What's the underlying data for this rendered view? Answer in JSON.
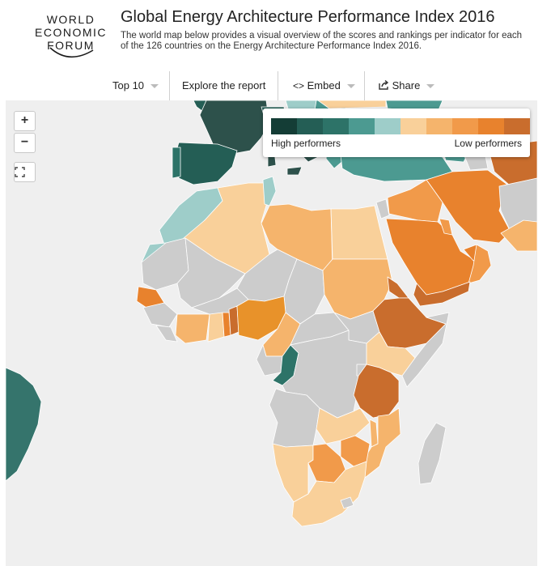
{
  "header": {
    "logo_lines": [
      "WORLD",
      "ECONOMIC",
      "FORUM"
    ],
    "title": "Global Energy Architecture Performance Index 2016",
    "subtitle": "The world map below provides a visual overview of the scores and rankings per indicator for each of the 126 countries on the Energy Architecture Performance Index 2016."
  },
  "toolbar": {
    "top_label": "Top 10",
    "explore_label": "Explore the report",
    "embed_label": "Embed",
    "share_label": "Share"
  },
  "zoom": {
    "in_label": "+",
    "out_label": "−"
  },
  "legend": {
    "high_label": "High performers",
    "low_label": "Low performers",
    "colors": [
      "#143d36",
      "#245e55",
      "#2d7368",
      "#4c9a91",
      "#9ecdc9",
      "#f9d09a",
      "#f5b46c",
      "#f19a4a",
      "#e8822d",
      "#c96d2d"
    ]
  },
  "colors": {
    "no_data": "#cccccc",
    "ocean": "#efefef",
    "border": "#ffffff"
  }
}
